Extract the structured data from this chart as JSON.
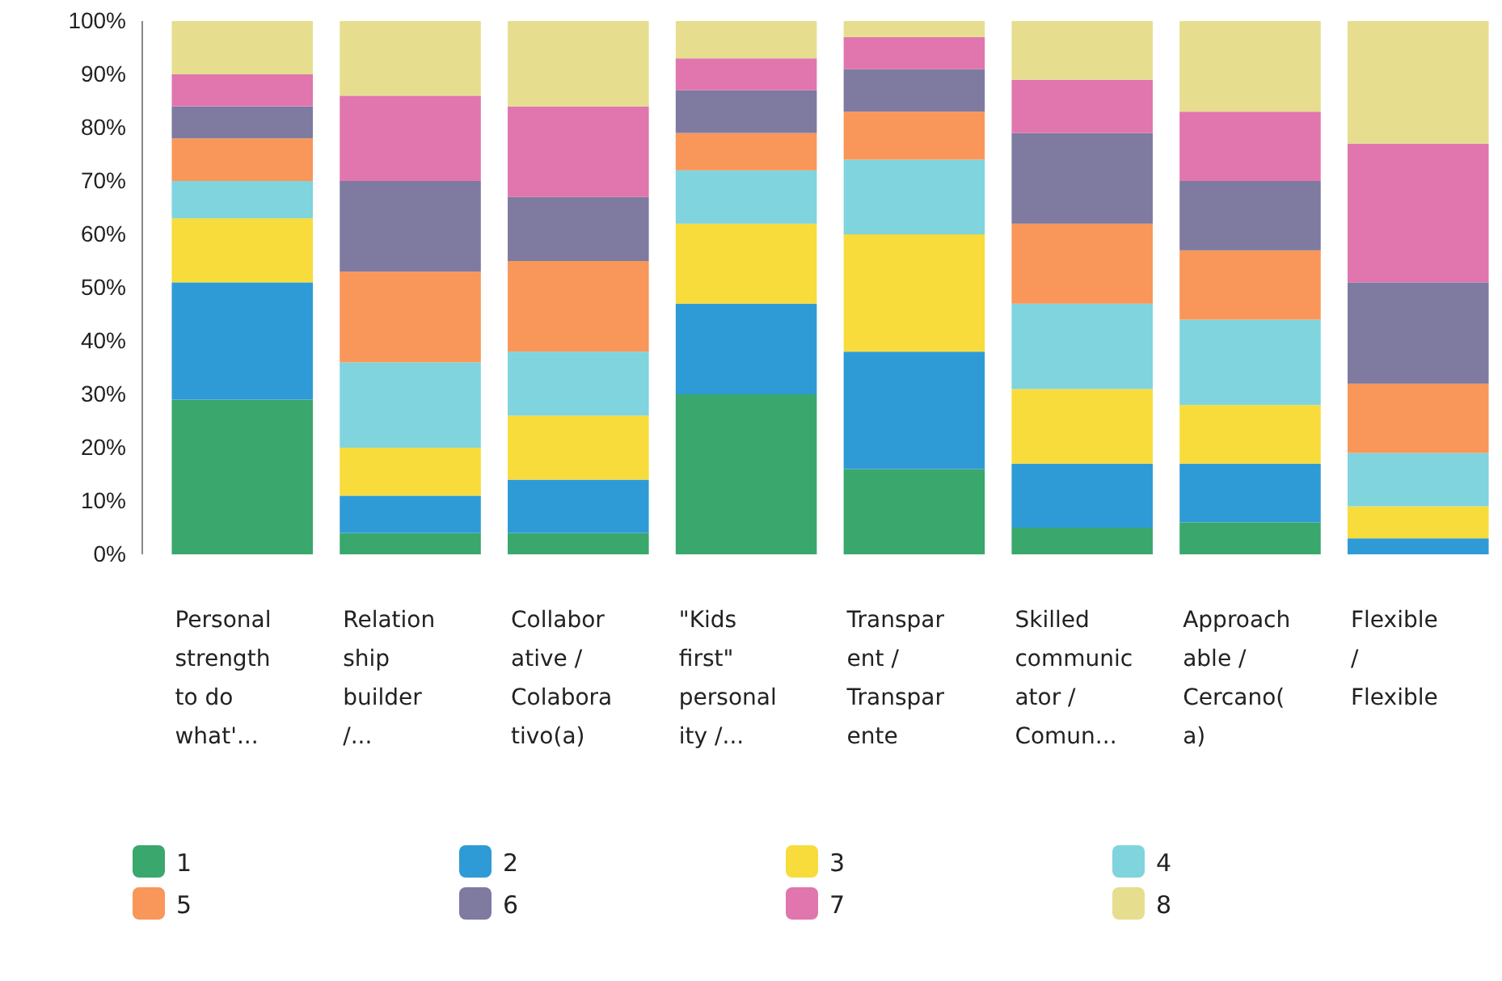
{
  "chart_data": {
    "type": "bar",
    "stacked": true,
    "categories": [
      "Personal\nstrength\nto do\nwhat'...",
      "Relation\nship\nbuilder\n/...",
      "Collabor\native /\nColabora\ntivo(a)",
      "\"Kids\nfirst\"\npersonal\nity /...",
      "Transpar\nent /\nTranspar\nente",
      "Skilled\ncommunic\nator /\nComun...",
      "Approach\nable /\nCercano(\na)",
      "Flexible\n/\nFlexible"
    ],
    "series": [
      {
        "name": "1",
        "color": "#3aa76d",
        "values": [
          29,
          4,
          4,
          30,
          16,
          5,
          6,
          0
        ]
      },
      {
        "name": "2",
        "color": "#2f9bd6",
        "values": [
          22,
          7,
          10,
          17,
          22,
          12,
          11,
          3
        ]
      },
      {
        "name": "3",
        "color": "#f7dc3b",
        "values": [
          12,
          9,
          12,
          15,
          22,
          14,
          11,
          6
        ]
      },
      {
        "name": "4",
        "color": "#7fd4de",
        "values": [
          7,
          16,
          12,
          10,
          14,
          16,
          16,
          10
        ]
      },
      {
        "name": "5",
        "color": "#f9965a",
        "values": [
          8,
          17,
          17,
          7,
          9,
          15,
          13,
          13
        ]
      },
      {
        "name": "6",
        "color": "#7e7aa0",
        "values": [
          6,
          17,
          12,
          8,
          8,
          17,
          13,
          19
        ]
      },
      {
        "name": "7",
        "color": "#e076ad",
        "values": [
          6,
          16,
          17,
          6,
          6,
          10,
          13,
          26
        ]
      },
      {
        "name": "8",
        "color": "#e6de8e",
        "values": [
          10,
          14,
          16,
          7,
          3,
          11,
          17,
          23
        ]
      }
    ],
    "ylim": [
      0,
      100
    ],
    "yticks": [
      {
        "value": 0,
        "label": "0%"
      },
      {
        "value": 10,
        "label": "10%"
      },
      {
        "value": 20,
        "label": "20%"
      },
      {
        "value": 30,
        "label": "30%"
      },
      {
        "value": 40,
        "label": "40%"
      },
      {
        "value": 50,
        "label": "50%"
      },
      {
        "value": 60,
        "label": "60%"
      },
      {
        "value": 70,
        "label": "70%"
      },
      {
        "value": 80,
        "label": "80%"
      },
      {
        "value": 90,
        "label": "90%"
      },
      {
        "value": 100,
        "label": "100%"
      }
    ],
    "grid": false,
    "legend": "bottom"
  }
}
